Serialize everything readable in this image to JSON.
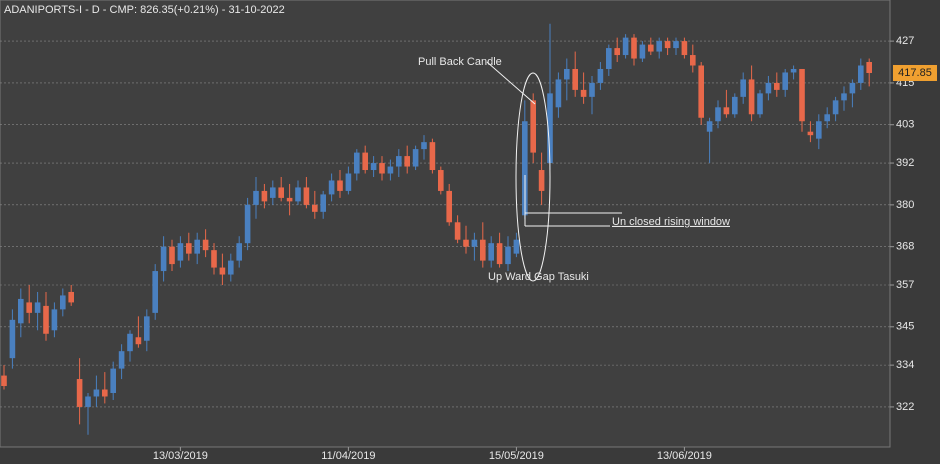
{
  "chart_data": {
    "type": "candlestick",
    "title": "ADANIPORTS-I - D - CMP: 826.35(+0.21%) - 31-10-2022",
    "up_color": "#4a80c0",
    "down_color": "#e8684a",
    "ylim": [
      310.5,
      438.8
    ],
    "yticks": [
      322,
      334,
      345,
      357,
      368,
      380,
      392,
      403,
      415,
      427
    ],
    "grid": true,
    "last_price": 417.85,
    "annotations": [
      "Pull Back Candle",
      "Up Ward Gap Tasuki",
      "Un closed rising window"
    ],
    "categories": [
      null,
      null,
      null,
      null,
      null,
      null,
      null,
      null,
      null,
      null,
      null,
      null,
      null,
      null,
      null,
      null,
      null,
      null,
      null,
      null,
      null,
      "13/03/2019",
      null,
      null,
      null,
      null,
      null,
      null,
      null,
      null,
      null,
      null,
      null,
      null,
      null,
      null,
      null,
      null,
      null,
      null,
      null,
      "11/04/2019",
      null,
      null,
      null,
      null,
      null,
      null,
      null,
      null,
      null,
      null,
      null,
      null,
      null,
      null,
      null,
      null,
      null,
      null,
      null,
      "15/05/2019",
      null,
      null,
      null,
      null,
      null,
      null,
      null,
      null,
      null,
      null,
      null,
      null,
      null,
      null,
      null,
      null,
      null,
      null,
      null,
      "13/06/2019",
      null,
      null,
      null,
      null,
      null,
      null,
      null,
      null,
      null,
      null,
      null,
      null,
      null,
      null,
      null,
      null,
      null,
      null,
      null,
      null,
      null,
      null
    ],
    "candles": [
      [
        331,
        334,
        327,
        328
      ],
      [
        336,
        350,
        333,
        347
      ],
      [
        346,
        356,
        342,
        353
      ],
      [
        352,
        357,
        346,
        349
      ],
      [
        349,
        355,
        344,
        352
      ],
      [
        351,
        355,
        341,
        343
      ],
      [
        344,
        352,
        342,
        350
      ],
      [
        350,
        356,
        348,
        354
      ],
      [
        355,
        357,
        351,
        352
      ],
      [
        330,
        336,
        317,
        322
      ],
      [
        322,
        326,
        314,
        325
      ],
      [
        325,
        331,
        322,
        327
      ],
      [
        327,
        332,
        323,
        325
      ],
      [
        326,
        335,
        324,
        333
      ],
      [
        333,
        340,
        330,
        338
      ],
      [
        338,
        344,
        335,
        343
      ],
      [
        342,
        348,
        339,
        340
      ],
      [
        341,
        350,
        338,
        348
      ],
      [
        349,
        363,
        347,
        361
      ],
      [
        361,
        371,
        358,
        368
      ],
      [
        368,
        370,
        361,
        363
      ],
      [
        364,
        371,
        362,
        369
      ],
      [
        369,
        372,
        364,
        366
      ],
      [
        366,
        372,
        363,
        370
      ],
      [
        370,
        373,
        365,
        367
      ],
      [
        367,
        369,
        360,
        362
      ],
      [
        362,
        366,
        357,
        360
      ],
      [
        360,
        366,
        358,
        364
      ],
      [
        364,
        371,
        362,
        369
      ],
      [
        369,
        382,
        367,
        380
      ],
      [
        380,
        388,
        376,
        384
      ],
      [
        384,
        386,
        379,
        381
      ],
      [
        382,
        387,
        380,
        385
      ],
      [
        385,
        388,
        381,
        382
      ],
      [
        382,
        386,
        377,
        381
      ],
      [
        381,
        387,
        380,
        385
      ],
      [
        385,
        388,
        379,
        380
      ],
      [
        380,
        384,
        376,
        378
      ],
      [
        378,
        384,
        376,
        383
      ],
      [
        383,
        389,
        381,
        387
      ],
      [
        387,
        390,
        382,
        384
      ],
      [
        384,
        391,
        383,
        389
      ],
      [
        389,
        396,
        387,
        395
      ],
      [
        395,
        397,
        389,
        390
      ],
      [
        390,
        394,
        388,
        392
      ],
      [
        392,
        394,
        387,
        389
      ],
      [
        389,
        393,
        387,
        391
      ],
      [
        391,
        396,
        388,
        394
      ],
      [
        394,
        397,
        389,
        391
      ],
      [
        391,
        397,
        390,
        396
      ],
      [
        396,
        400,
        393,
        398
      ],
      [
        398,
        399,
        389,
        390
      ],
      [
        390,
        391,
        383,
        384
      ],
      [
        384,
        386,
        374,
        375
      ],
      [
        375,
        377,
        369,
        370
      ],
      [
        370,
        374,
        366,
        368
      ],
      [
        368,
        372,
        364,
        370
      ],
      [
        370,
        375,
        362,
        364
      ],
      [
        364,
        371,
        362,
        369
      ],
      [
        369,
        372,
        362,
        363
      ],
      [
        363,
        371,
        361,
        368
      ],
      [
        366,
        372,
        365,
        370
      ],
      [
        377,
        410,
        376,
        404
      ],
      [
        410,
        412,
        392,
        395
      ],
      [
        390,
        395,
        380,
        384
      ],
      [
        392,
        432,
        390,
        412
      ],
      [
        408,
        418,
        405,
        416
      ],
      [
        416,
        422,
        410,
        419
      ],
      [
        419,
        424,
        411,
        413
      ],
      [
        413,
        418,
        409,
        411
      ],
      [
        411,
        417,
        406,
        415
      ],
      [
        415,
        421,
        413,
        419
      ],
      [
        419,
        426,
        417,
        425
      ],
      [
        425,
        428,
        421,
        423
      ],
      [
        423,
        429,
        422,
        428
      ],
      [
        428,
        429,
        420,
        422
      ],
      [
        422,
        427,
        421,
        426
      ],
      [
        426,
        428,
        423,
        424
      ],
      [
        424,
        428,
        422,
        427
      ],
      [
        427,
        428,
        423,
        425
      ],
      [
        425,
        428,
        423,
        427
      ],
      [
        427,
        428,
        422,
        423
      ],
      [
        423,
        426,
        418,
        420
      ],
      [
        420,
        421,
        403,
        405
      ],
      [
        401,
        405,
        392,
        404
      ],
      [
        404,
        410,
        402,
        408
      ],
      [
        408,
        413,
        405,
        406
      ],
      [
        406,
        412,
        405,
        411
      ],
      [
        411,
        418,
        409,
        416
      ],
      [
        416,
        420,
        404,
        406
      ],
      [
        406,
        413,
        405,
        412
      ],
      [
        412,
        417,
        410,
        415
      ],
      [
        415,
        418,
        411,
        413
      ],
      [
        413,
        419,
        411,
        418
      ],
      [
        418,
        420,
        416,
        419
      ],
      [
        419,
        419,
        401,
        404
      ],
      [
        401,
        404,
        398,
        400
      ],
      [
        399,
        406,
        396,
        404
      ],
      [
        404,
        408,
        402,
        406
      ],
      [
        406,
        411,
        404,
        410
      ],
      [
        410,
        414,
        407,
        412
      ],
      [
        412,
        416,
        408,
        415
      ],
      [
        415,
        422,
        413,
        420
      ],
      [
        421,
        422,
        414,
        417.85
      ]
    ]
  }
}
